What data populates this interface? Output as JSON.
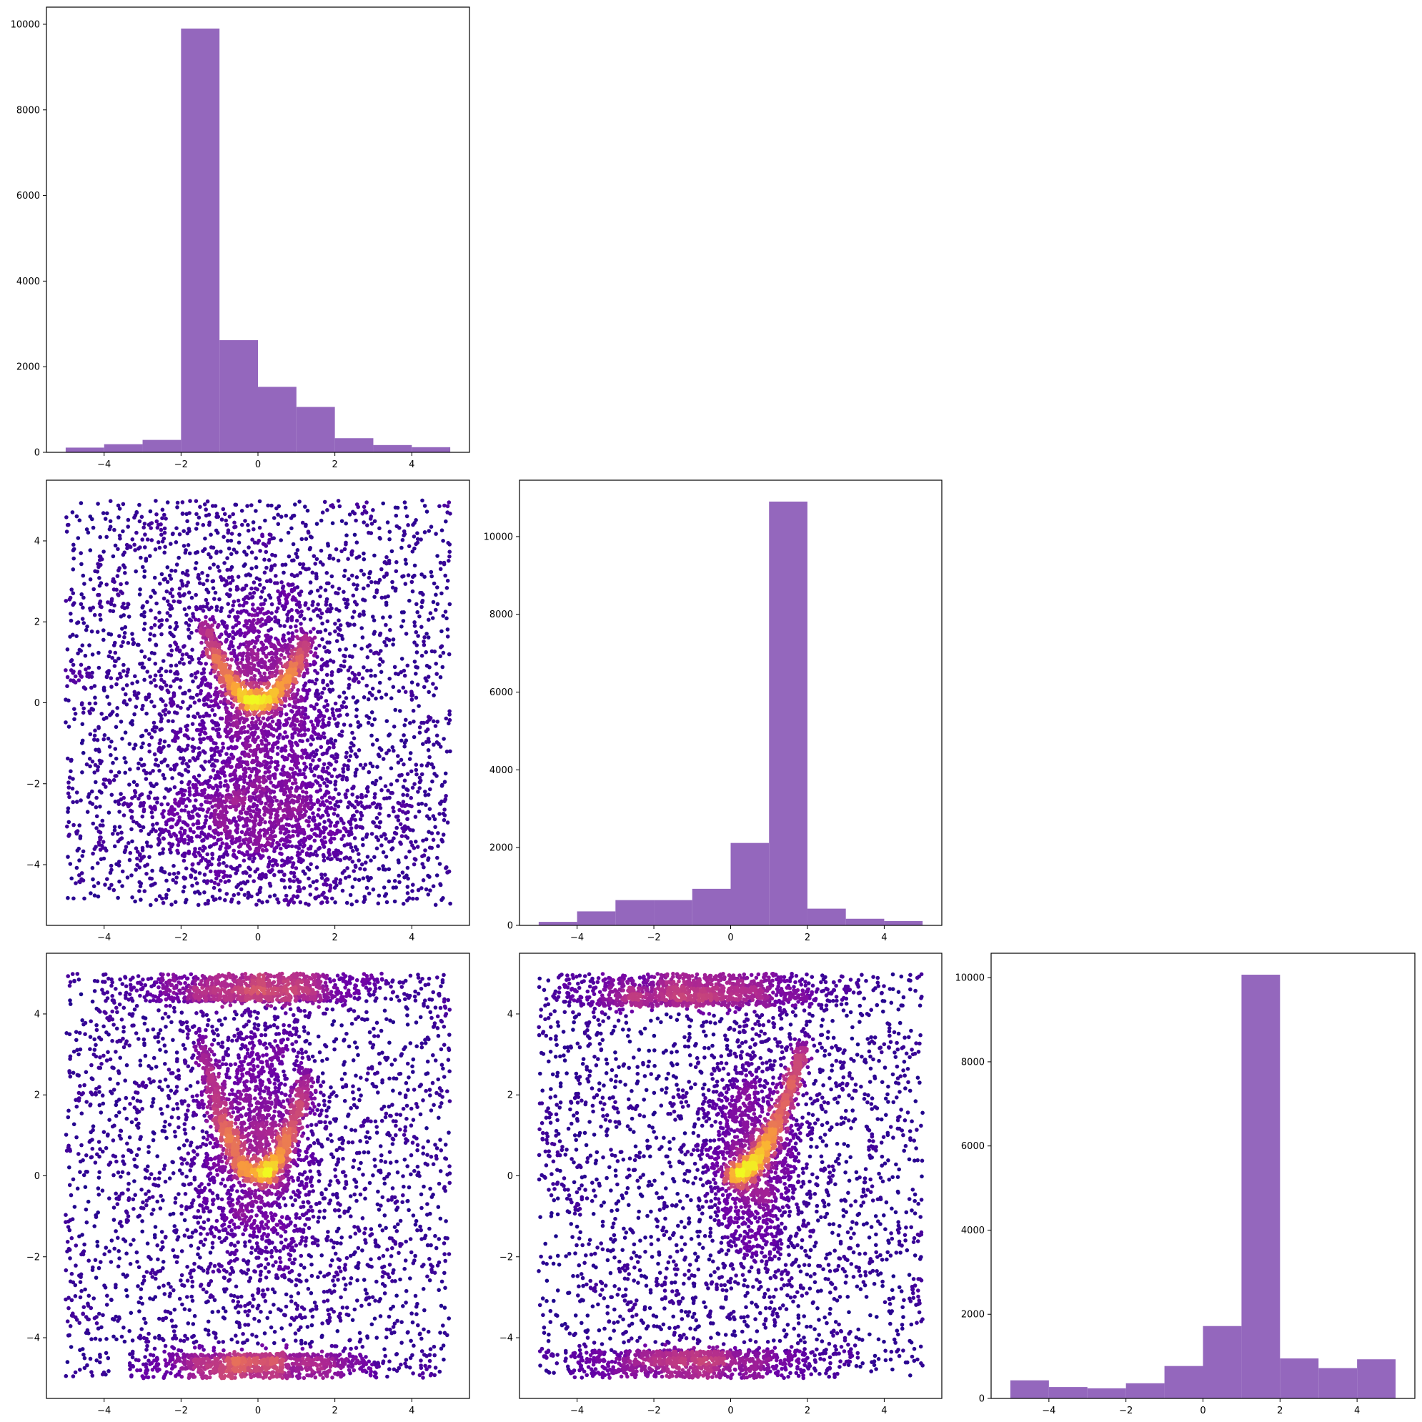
{
  "figure": {
    "layout": "corner-plot",
    "grid": "3x3 lower-triangle"
  },
  "colors": {
    "hist_fill": "#9467bd",
    "colormap": "plasma",
    "cmap_stops": [
      "#0d0887",
      "#6a00a8",
      "#b12a90",
      "#e16462",
      "#fca636",
      "#f0f921"
    ]
  },
  "chart_data": [
    {
      "id": "hist-x0",
      "type": "bar",
      "panel": [
        0,
        0
      ],
      "bin_edges": [
        -5,
        -4,
        -3,
        -2,
        -1,
        0,
        1,
        2,
        3,
        4,
        5
      ],
      "values": [
        110,
        190,
        290,
        9900,
        2620,
        1530,
        1060,
        330,
        170,
        120
      ],
      "xlim": [
        -5.5,
        5.5
      ],
      "ylim": [
        0,
        10400
      ],
      "xticks": [
        -4,
        -2,
        0,
        2,
        4
      ],
      "yticks": [
        0,
        2000,
        4000,
        6000,
        8000,
        10000
      ],
      "xtick_labels": [
        "−4",
        "−2",
        "0",
        "2",
        "4"
      ],
      "ytick_labels": [
        "0",
        "2000",
        "4000",
        "6000",
        "8000",
        "10000"
      ],
      "title": "",
      "xlabel": "",
      "ylabel": ""
    },
    {
      "id": "scatter-x0-x1",
      "type": "scatter",
      "panel": [
        1,
        0
      ],
      "description": "density-colored scatter of x0 vs x1",
      "curve": "left arm from (-1.4, 2.0) down to (0, -0.1), right arm up to (1.3, 1.8)",
      "xlim": [
        -5.5,
        5.5
      ],
      "ylim": [
        -5.5,
        5.5
      ],
      "xticks": [
        -4,
        -2,
        0,
        2,
        4
      ],
      "yticks": [
        -4,
        -2,
        0,
        2,
        4
      ],
      "xtick_labels": [
        "−4",
        "−2",
        "0",
        "2",
        "4"
      ],
      "ytick_labels": [
        "−4",
        "−2",
        "0",
        "2",
        "4"
      ],
      "title": "",
      "xlabel": "",
      "ylabel": ""
    },
    {
      "id": "hist-x1",
      "type": "bar",
      "panel": [
        1,
        1
      ],
      "bin_edges": [
        -5,
        -4,
        -3,
        -2,
        -1,
        0,
        1,
        2,
        3,
        4,
        5
      ],
      "values": [
        90,
        360,
        650,
        650,
        940,
        2120,
        10900,
        430,
        170,
        110
      ],
      "xlim": [
        -5.5,
        5.5
      ],
      "ylim": [
        0,
        11450
      ],
      "xticks": [
        -4,
        -2,
        0,
        2,
        4
      ],
      "yticks": [
        0,
        2000,
        4000,
        6000,
        8000,
        10000
      ],
      "xtick_labels": [
        "−4",
        "−2",
        "0",
        "2",
        "4"
      ],
      "ytick_labels": [
        "0",
        "2000",
        "4000",
        "6000",
        "8000",
        "10000"
      ],
      "title": "",
      "xlabel": "",
      "ylabel": ""
    },
    {
      "id": "scatter-x0-x2",
      "type": "scatter",
      "panel": [
        2,
        0
      ],
      "description": "density-colored scatter of x0 vs x2",
      "curve": "U shape: left arm from (-1.5, 3.5) to (-0.7, 0.1), right arm up to (1.3, 3.0)",
      "xlim": [
        -5.5,
        5.5
      ],
      "ylim": [
        -5.5,
        5.5
      ],
      "xticks": [
        -4,
        -2,
        0,
        2,
        4
      ],
      "yticks": [
        -4,
        -2,
        0,
        2,
        4
      ],
      "xtick_labels": [
        "−4",
        "−2",
        "0",
        "2",
        "4"
      ],
      "ytick_labels": [
        "−4",
        "−2",
        "0",
        "2",
        "4"
      ],
      "title": "",
      "xlabel": "",
      "ylabel": ""
    },
    {
      "id": "scatter-x1-x2",
      "type": "scatter",
      "panel": [
        2,
        1
      ],
      "description": "density-colored scatter of x1 vs x2",
      "curve": "rising arc from (0, 0) up to (1.9, 3.2)",
      "xlim": [
        -5.5,
        5.5
      ],
      "ylim": [
        -5.5,
        5.5
      ],
      "xticks": [
        -4,
        -2,
        0,
        2,
        4
      ],
      "yticks": [
        -4,
        -2,
        0,
        2,
        4
      ],
      "xtick_labels": [
        "−4",
        "−2",
        "0",
        "2",
        "4"
      ],
      "ytick_labels": [
        "−4",
        "−2",
        "0",
        "2",
        "4"
      ],
      "title": "",
      "xlabel": "",
      "ylabel": ""
    },
    {
      "id": "hist-x2",
      "type": "bar",
      "panel": [
        2,
        2
      ],
      "bin_edges": [
        -5,
        -4,
        -3,
        -2,
        -1,
        0,
        1,
        2,
        3,
        4,
        5
      ],
      "values": [
        430,
        270,
        240,
        360,
        770,
        1720,
        10070,
        950,
        720,
        930
      ],
      "xlim": [
        -5.5,
        5.5
      ],
      "ylim": [
        0,
        10580
      ],
      "xticks": [
        -4,
        -2,
        0,
        2,
        4
      ],
      "yticks": [
        0,
        2000,
        4000,
        6000,
        8000,
        10000
      ],
      "xtick_labels": [
        "−4",
        "−2",
        "0",
        "2",
        "4"
      ],
      "ytick_labels": [
        "0",
        "2000",
        "4000",
        "6000",
        "8000",
        "10000"
      ],
      "title": "",
      "xlabel": "",
      "ylabel": ""
    }
  ]
}
